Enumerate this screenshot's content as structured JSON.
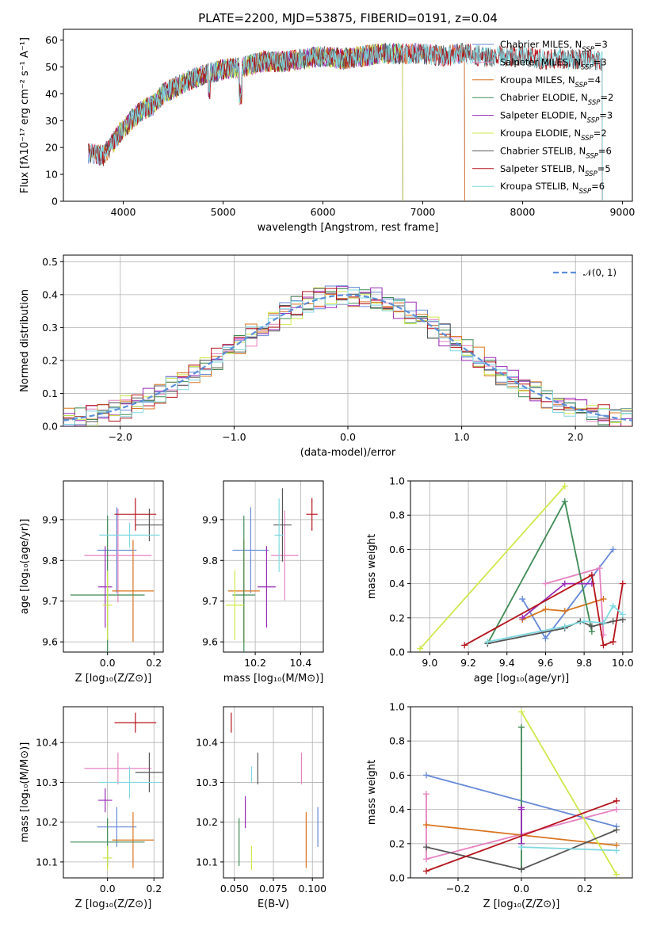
{
  "colors": {
    "Chabrier MILES": "#6689d6",
    "Salpeter MILES": "#e681c0",
    "Kroupa MILES": "#d8741f",
    "Chabrier ELODIE": "#3f8a55",
    "Salpeter ELODIE": "#9a2bb8",
    "Kroupa ELODIE": "#cfe84a",
    "Chabrier STELIB": "#555555",
    "Salpeter STELIB": "#b5121b",
    "Kroupa STELIB": "#7fd8e0",
    "normal": "#5b8fd9"
  },
  "chart_data": [
    {
      "id": "spectrum",
      "type": "line",
      "title": "PLATE=2200, MJD=53875, FIBERID=0191, z=0.04",
      "xlabel": "wavelength [Angstrom, rest frame]",
      "ylabel": "Flux [fλ10⁻¹⁷ erg cm⁻² s⁻¹ A⁻¹]",
      "xlim": [
        3400,
        9100
      ],
      "ylim": [
        0,
        64
      ],
      "xticks": [
        4000,
        5000,
        6000,
        7000,
        8000,
        9000
      ],
      "yticks": [
        0,
        10,
        20,
        30,
        40,
        50,
        60
      ],
      "legend": "top-right",
      "legend_labels": [
        {
          "name": "Chabrier MILES",
          "text": "Chabrier MILES, N",
          "sub": "SSP",
          "n": "=3"
        },
        {
          "name": "Salpeter MILES",
          "text": "Salpeter MILES, N",
          "sub": "SSP",
          "n": "=3"
        },
        {
          "name": "Kroupa MILES",
          "text": "Kroupa MILES, N",
          "sub": "SSP",
          "n": "=4"
        },
        {
          "name": "Chabrier ELODIE",
          "text": "Chabrier ELODIE, N",
          "sub": "SSP",
          "n": "=2"
        },
        {
          "name": "Salpeter ELODIE",
          "text": "Salpeter ELODIE, N",
          "sub": "SSP",
          "n": "=3"
        },
        {
          "name": "Kroupa ELODIE",
          "text": "Kroupa ELODIE, N",
          "sub": "SSP",
          "n": "=2"
        },
        {
          "name": "Chabrier STELIB",
          "text": "Chabrier STELIB, N",
          "sub": "SSP",
          "n": "=6"
        },
        {
          "name": "Salpeter STELIB",
          "text": "Salpeter STELIB, N",
          "sub": "SSP",
          "n": "=5"
        },
        {
          "name": "Kroupa STELIB",
          "text": "Kroupa STELIB, N",
          "sub": "SSP",
          "n": "=6"
        }
      ],
      "continuum": {
        "x": [
          3650,
          3800,
          3900,
          4000,
          4100,
          4200,
          4300,
          4400,
          4600,
          4800,
          5000,
          5200,
          5400,
          5600,
          5800,
          6000,
          6200,
          6400,
          6600,
          6800,
          7000,
          7200,
          7400,
          7600,
          7800,
          8000,
          8200,
          8400,
          8600,
          8800
        ],
        "y": [
          18,
          17,
          22,
          27,
          31,
          34,
          36,
          40,
          44,
          47,
          49,
          50,
          52,
          52,
          53,
          54,
          53,
          54,
          55,
          55,
          55,
          54,
          55,
          54,
          54,
          54,
          53,
          53,
          53,
          52
        ]
      },
      "model_ranges": {
        "MILES": [
          3650,
          7420
        ],
        "ELODIE": [
          3900,
          6800
        ],
        "STELIB": [
          3650,
          8800
        ]
      }
    },
    {
      "id": "residuals",
      "type": "bar",
      "xlabel": "(data-model)/error",
      "ylabel": "Normed distribution",
      "xlim": [
        -2.5,
        2.5
      ],
      "ylim": [
        0,
        0.52
      ],
      "xticks": [
        -2,
        -1,
        0,
        1,
        2
      ],
      "yticks": [
        0.0,
        0.1,
        0.2,
        0.3,
        0.4,
        0.5
      ],
      "legend": "top-right",
      "legend_label": "𝒩(0, 1)",
      "grid": true,
      "bin_width": 0.1
    },
    {
      "id": "age-vs-Z",
      "type": "scatter",
      "xlabel": "Z [log₁₀(Z/Z⊙)]",
      "ylabel": "age  [log₁₀(age/yr)]",
      "xlim": [
        -0.19,
        0.24
      ],
      "ylim": [
        9.575,
        9.995
      ],
      "xticks": [
        0.0,
        0.2
      ],
      "yticks": [
        9.6,
        9.7,
        9.8,
        9.9
      ],
      "grid": true,
      "points": [
        {
          "s": "Chabrier MILES",
          "x": 0.04,
          "xerr": 0.085,
          "y": 9.825,
          "yerr": 0.105
        },
        {
          "s": "Salpeter MILES",
          "x": 0.045,
          "xerr": 0.145,
          "y": 9.812,
          "yerr": 0.115
        },
        {
          "s": "Kroupa MILES",
          "x": 0.11,
          "xerr": 0.09,
          "y": 9.725,
          "yerr": 0.125
        },
        {
          "s": "Chabrier ELODIE",
          "x": 0.0,
          "xerr": 0.16,
          "y": 9.715,
          "yerr": 0.195
        },
        {
          "s": "Salpeter ELODIE",
          "x": -0.01,
          "xerr": 0.03,
          "y": 9.735,
          "yerr": 0.1
        },
        {
          "s": "Kroupa ELODIE",
          "x": 0.0,
          "xerr": 0.02,
          "y": 9.69,
          "yerr": 0.085
        },
        {
          "s": "Chabrier STELIB",
          "x": 0.18,
          "xerr": 0.06,
          "y": 9.887,
          "yerr": 0.04
        },
        {
          "s": "Salpeter STELIB",
          "x": 0.12,
          "xerr": 0.09,
          "y": 9.913,
          "yerr": 0.04
        },
        {
          "s": "Kroupa STELIB",
          "x": 0.095,
          "xerr": 0.13,
          "y": 9.862,
          "yerr": 0.03
        }
      ]
    },
    {
      "id": "age-vs-mass",
      "type": "scatter",
      "xlabel": "mass [log₁₀(M/M⊙)]",
      "ylabel": "",
      "xlim": [
        10.06,
        10.5
      ],
      "ylim": [
        9.575,
        9.995
      ],
      "xticks": [
        10.2,
        10.4
      ],
      "yticks": [
        9.6,
        9.7,
        9.8,
        9.9
      ],
      "grid": true,
      "points": [
        {
          "s": "Chabrier MILES",
          "x": 10.18,
          "xerr": 0.08,
          "y": 9.825,
          "yerr": 0.105
        },
        {
          "s": "Salpeter MILES",
          "x": 10.33,
          "xerr": 0.06,
          "y": 9.812,
          "yerr": 0.11
        },
        {
          "s": "Kroupa MILES",
          "x": 10.15,
          "xerr": 0.07,
          "y": 9.725,
          "yerr": 0.125
        },
        {
          "s": "Chabrier ELODIE",
          "x": 10.15,
          "xerr": 0.05,
          "y": 9.715,
          "yerr": 0.195
        },
        {
          "s": "Salpeter ELODIE",
          "x": 10.25,
          "xerr": 0.04,
          "y": 9.735,
          "yerr": 0.1
        },
        {
          "s": "Kroupa ELODIE",
          "x": 10.11,
          "xerr": 0.04,
          "y": 9.69,
          "yerr": 0.085
        },
        {
          "s": "Chabrier STELIB",
          "x": 10.32,
          "xerr": 0.04,
          "y": 9.887,
          "yerr": 0.09
        },
        {
          "s": "Salpeter STELIB",
          "x": 10.45,
          "xerr": 0.025,
          "y": 9.913,
          "yerr": 0.04
        },
        {
          "s": "Kroupa STELIB",
          "x": 10.305,
          "xerr": 0.02,
          "y": 9.862,
          "yerr": 0.09
        }
      ]
    },
    {
      "id": "mass-weight-vs-age",
      "type": "line",
      "xlabel": "age  [log₁₀(age/yr)]",
      "ylabel": "mass weight",
      "xlim": [
        8.9,
        10.05
      ],
      "ylim": [
        0.0,
        1.0
      ],
      "xticks": [
        9.0,
        9.2,
        9.4,
        9.6,
        9.8,
        10.0
      ],
      "yticks": [
        0.0,
        0.2,
        0.4,
        0.6,
        0.8,
        1.0
      ],
      "grid": true,
      "series": [
        {
          "s": "Chabrier MILES",
          "x": [
            9.48,
            9.6,
            9.95
          ],
          "y": [
            0.31,
            0.08,
            0.6
          ]
        },
        {
          "s": "Salpeter MILES",
          "x": [
            9.6,
            9.88,
            9.9
          ],
          "y": [
            0.4,
            0.49,
            0.1
          ]
        },
        {
          "s": "Kroupa MILES",
          "x": [
            9.48,
            9.6,
            9.7,
            9.9
          ],
          "y": [
            0.19,
            0.25,
            0.24,
            0.31
          ]
        },
        {
          "s": "Chabrier ELODIE",
          "x": [
            9.3,
            9.7,
            9.84
          ],
          "y": [
            0.05,
            0.88,
            0.12
          ]
        },
        {
          "s": "Salpeter ELODIE",
          "x": [
            9.48,
            9.7,
            9.84
          ],
          "y": [
            0.2,
            0.4,
            0.4
          ]
        },
        {
          "s": "Kroupa ELODIE",
          "x": [
            8.95,
            9.7
          ],
          "y": [
            0.02,
            0.97
          ]
        },
        {
          "s": "Chabrier STELIB",
          "x": [
            9.3,
            9.7,
            9.78,
            9.84,
            9.95,
            10.0
          ],
          "y": [
            0.05,
            0.14,
            0.18,
            0.15,
            0.18,
            0.19
          ]
        },
        {
          "s": "Salpeter STELIB",
          "x": [
            9.18,
            9.84,
            9.9,
            9.95,
            10.0
          ],
          "y": [
            0.04,
            0.45,
            0.04,
            0.06,
            0.4
          ]
        },
        {
          "s": "Kroupa STELIB",
          "x": [
            9.3,
            9.7,
            9.8,
            9.9,
            9.95,
            10.0
          ],
          "y": [
            0.06,
            0.15,
            0.18,
            0.17,
            0.27,
            0.22
          ]
        }
      ]
    },
    {
      "id": "mass-vs-Z",
      "type": "scatter",
      "xlabel": "Z [log₁₀(Z/Z⊙)]",
      "ylabel": "mass [log₁₀(M/M⊙)]",
      "xlim": [
        -0.19,
        0.24
      ],
      "ylim": [
        10.06,
        10.49
      ],
      "xticks": [
        0.0,
        0.2
      ],
      "yticks": [
        10.1,
        10.2,
        10.3,
        10.4
      ],
      "grid": true,
      "points": [
        {
          "s": "Chabrier MILES",
          "x": 0.04,
          "xerr": 0.085,
          "y": 10.188,
          "yerr": 0.05
        },
        {
          "s": "Salpeter MILES",
          "x": 0.045,
          "xerr": 0.145,
          "y": 10.335,
          "yerr": 0.04
        },
        {
          "s": "Kroupa MILES",
          "x": 0.11,
          "xerr": 0.09,
          "y": 10.155,
          "yerr": 0.07
        },
        {
          "s": "Chabrier ELODIE",
          "x": 0.0,
          "xerr": 0.16,
          "y": 10.15,
          "yerr": 0.06
        },
        {
          "s": "Salpeter ELODIE",
          "x": -0.01,
          "xerr": 0.03,
          "y": 10.255,
          "yerr": 0.03
        },
        {
          "s": "Kroupa ELODIE",
          "x": 0.0,
          "xerr": 0.02,
          "y": 10.11,
          "yerr": 0.03
        },
        {
          "s": "Chabrier STELIB",
          "x": 0.18,
          "xerr": 0.06,
          "y": 10.325,
          "yerr": 0.05
        },
        {
          "s": "Salpeter STELIB",
          "x": 0.12,
          "xerr": 0.09,
          "y": 10.45,
          "yerr": 0.025
        },
        {
          "s": "Kroupa STELIB",
          "x": 0.095,
          "xerr": 0.13,
          "y": 10.3,
          "yerr": 0.04
        }
      ]
    },
    {
      "id": "mass-vs-EBV",
      "type": "scatter",
      "xlabel": "E(B-V)",
      "ylabel": "",
      "xlim": [
        0.043,
        0.107
      ],
      "ylim": [
        10.06,
        10.49
      ],
      "xticks": [
        0.05,
        0.075,
        0.1
      ],
      "xtick_labels": [
        "0.050",
        "0.075",
        "0.100"
      ],
      "yticks": [
        10.1,
        10.2,
        10.3,
        10.4
      ],
      "grid": true,
      "points": [
        {
          "s": "Chabrier MILES",
          "x": 0.1035,
          "y": 10.188,
          "yerr": 0.05
        },
        {
          "s": "Salpeter MILES",
          "x": 0.093,
          "y": 10.335,
          "yerr": 0.04
        },
        {
          "s": "Kroupa MILES",
          "x": 0.096,
          "y": 10.155,
          "yerr": 0.07
        },
        {
          "s": "Chabrier ELODIE",
          "x": 0.053,
          "y": 10.15,
          "yerr": 0.06
        },
        {
          "s": "Salpeter ELODIE",
          "x": 0.057,
          "y": 10.225,
          "yerr": 0.04
        },
        {
          "s": "Kroupa ELODIE",
          "x": 0.061,
          "y": 10.11,
          "yerr": 0.03
        },
        {
          "s": "Chabrier STELIB",
          "x": 0.065,
          "y": 10.335,
          "yerr": 0.04
        },
        {
          "s": "Salpeter STELIB",
          "x": 0.048,
          "y": 10.45,
          "yerr": 0.025
        },
        {
          "s": "Kroupa STELIB",
          "x": 0.061,
          "y": 10.32,
          "yerr": 0.02
        }
      ]
    },
    {
      "id": "mass-weight-vs-Z",
      "type": "line",
      "xlabel": "Z [log₁₀(Z/Z⊙)]",
      "ylabel": "mass weight",
      "xlim": [
        -0.35,
        0.35
      ],
      "ylim": [
        0.0,
        1.0
      ],
      "xticks": [
        -0.2,
        0.0,
        0.2
      ],
      "xtick_labels": [
        "−0.2",
        "0.0",
        "0.2"
      ],
      "yticks": [
        0.0,
        0.2,
        0.4,
        0.6,
        0.8,
        1.0
      ],
      "grid": true,
      "series": [
        {
          "s": "Chabrier MILES",
          "x": [
            -0.3,
            0.3
          ],
          "y": [
            0.6,
            0.3
          ]
        },
        {
          "s": "Salpeter MILES",
          "x": [
            -0.3,
            -0.3,
            0.3
          ],
          "y": [
            0.49,
            0.11,
            0.4
          ]
        },
        {
          "s": "Kroupa MILES",
          "x": [
            -0.3,
            0.3
          ],
          "y": [
            0.31,
            0.19
          ]
        },
        {
          "s": "Chabrier ELODIE",
          "x": [
            0.0,
            0.0
          ],
          "y": [
            0.88,
            0.05
          ]
        },
        {
          "s": "Salpeter ELODIE",
          "x": [
            0.0,
            0.0,
            0.0
          ],
          "y": [
            0.41,
            0.4,
            0.2
          ]
        },
        {
          "s": "Kroupa ELODIE",
          "x": [
            0.0,
            0.3
          ],
          "y": [
            0.97,
            0.02
          ]
        },
        {
          "s": "Chabrier STELIB",
          "x": [
            -0.3,
            0.0,
            0.3
          ],
          "y": [
            0.18,
            0.05,
            0.28
          ]
        },
        {
          "s": "Salpeter STELIB",
          "x": [
            -0.3,
            0.3
          ],
          "y": [
            0.04,
            0.45
          ]
        },
        {
          "s": "Kroupa STELIB",
          "x": [
            0.0,
            0.3
          ],
          "y": [
            0.18,
            0.16
          ]
        }
      ]
    }
  ]
}
